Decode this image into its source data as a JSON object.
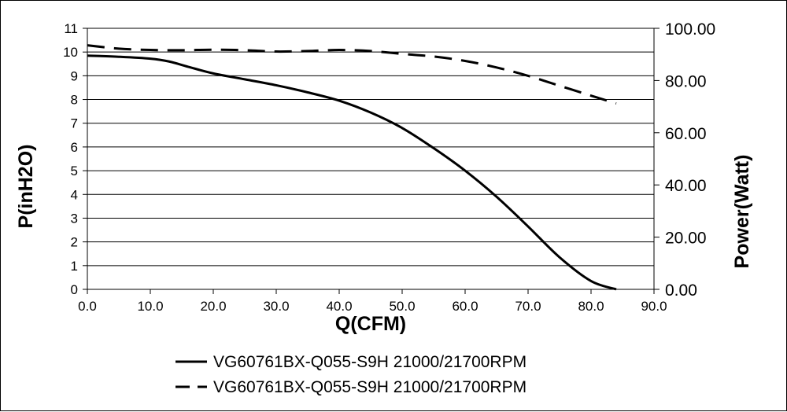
{
  "chart_data": {
    "type": "line",
    "title": "",
    "xlabel": "Q(CFM)",
    "ylabel": "P(inH2O)",
    "y2label": "Power(Watt)",
    "xlim": [
      0,
      90
    ],
    "ylim": [
      0,
      11
    ],
    "y2lim": [
      0,
      100
    ],
    "xticks": [
      "0.0",
      "10.0",
      "20.0",
      "30.0",
      "40.0",
      "50.0",
      "60.0",
      "70.0",
      "80.0",
      "90.0"
    ],
    "yticks": [
      "0",
      "1",
      "2",
      "3",
      "4",
      "5",
      "6",
      "7",
      "8",
      "9",
      "10",
      "11"
    ],
    "y2ticks": [
      "0.00",
      "20.00",
      "40.00",
      "60.00",
      "80.00",
      "100.00"
    ],
    "grid": "horizontal",
    "legend": "bottom",
    "series": [
      {
        "name": "VG60761BX-Q055-S9H 21000/21700RPM",
        "axis": "left",
        "style": "solid",
        "color": "#000000",
        "x": [
          0,
          5,
          10,
          13,
          16,
          20,
          25,
          30,
          35,
          40,
          45,
          50,
          55,
          60,
          65,
          70,
          75,
          80,
          84
        ],
        "y": [
          9.85,
          9.8,
          9.72,
          9.6,
          9.38,
          9.1,
          8.85,
          8.6,
          8.3,
          7.95,
          7.45,
          6.8,
          5.95,
          5.0,
          3.9,
          2.65,
          1.35,
          0.35,
          0.0
        ]
      },
      {
        "name": "VG60761BX-Q055-S9H 21000/21700RPM",
        "axis": "right",
        "style": "dashed",
        "color": "#000000",
        "x": [
          0,
          5,
          10,
          15,
          20,
          25,
          30,
          35,
          40,
          45,
          50,
          55,
          60,
          65,
          70,
          75,
          80,
          84
        ],
        "y": [
          93.5,
          92.2,
          91.7,
          91.6,
          91.8,
          91.6,
          91.1,
          91.3,
          91.7,
          91.3,
          90.2,
          89.2,
          87.5,
          85.0,
          81.8,
          78.0,
          74.2,
          71.2
        ]
      }
    ]
  }
}
